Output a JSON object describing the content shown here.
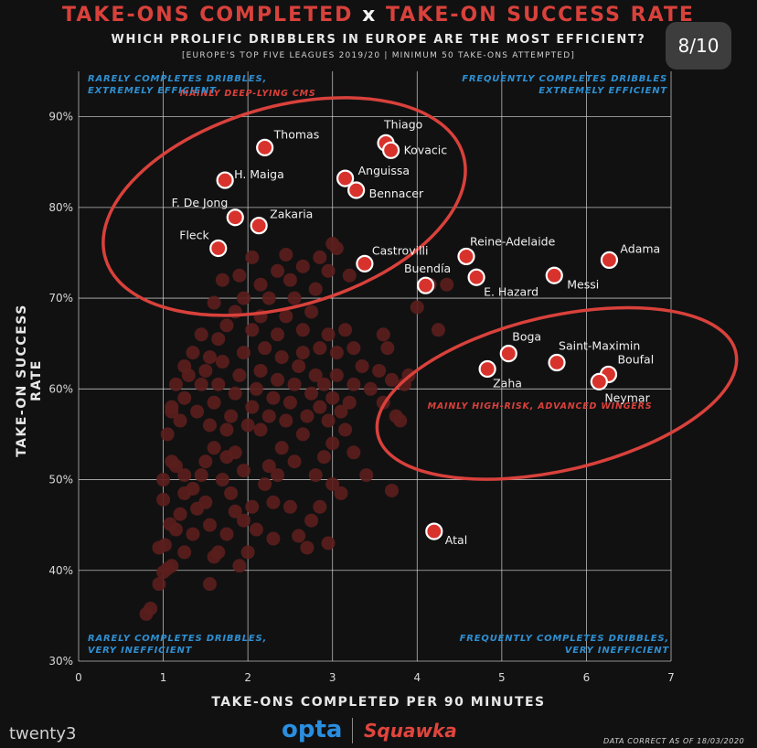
{
  "header": {
    "title_part1": "TAKE-ONS COMPLETED",
    "title_x": "x",
    "title_part2": "TAKE-ON SUCCESS RATE",
    "subtitle": "WHICH PROLIFIC DRIBBLERS IN EUROPE ARE THE MOST EFFICIENT?",
    "subsubtitle": "[EUROPE'S TOP FIVE LEAGUES 2019/20 | MINIMUM 50 TAKE-ONS ATTEMPTED]",
    "page_badge": "8/10"
  },
  "corners": {
    "top_left": "RARELY COMPLETES DRIBBLES,\nEXTREMELY EFFICIENT",
    "top_right": "FREQUENTLY COMPLETES DRIBBLES\nEXTREMELY EFFICIENT",
    "bottom_left": "RARELY COMPLETES DRIBBLES,\nVERY INEFFICIENT",
    "bottom_right": "FREQUENTLY COMPLETES DRIBBLES,\nVERY INEFFICIENT"
  },
  "footer": {
    "logo_left": "twenty3",
    "logo_opta": "opta",
    "logo_squawka": "Squawka",
    "footnote": "DATA CORRECT AS OF 18/03/2020"
  },
  "colors": {
    "background": "#111112",
    "accent_red": "#d9413b",
    "highlight_dot": "#d8322c",
    "background_dot": "#5a1e1c",
    "grid": "#d8d8d8",
    "corner_text": "#2f8fd0"
  },
  "chart_data": {
    "type": "scatter",
    "xlabel": "TAKE-ONS COMPLETED PER 90 MINUTES",
    "ylabel": "TAKE-ON SUCCESS RATE",
    "xlim": [
      0,
      7
    ],
    "ylim": [
      30,
      95
    ],
    "x_ticks": [
      "0",
      "1",
      "2",
      "3",
      "4",
      "5",
      "6",
      "7"
    ],
    "y_ticks": [
      "30%",
      "40%",
      "50%",
      "60%",
      "70%",
      "80%",
      "90%"
    ],
    "grid": true,
    "annotations": [
      {
        "text": "MAINLY DEEP-LYING CMS",
        "x": 2.0,
        "y": 92.3,
        "ellipse": {
          "cx": 2.43,
          "cy": 80.1,
          "rx": 2.2,
          "ry": 11.0,
          "angle": -16
        }
      },
      {
        "text": "MAINLY HIGH-RISK, ADVANCED WINGERS",
        "x": 5.45,
        "y": 57.8,
        "ellipse": {
          "cx": 5.65,
          "cy": 59.5,
          "rx": 2.17,
          "ry": 8.5,
          "angle": -13
        }
      }
    ],
    "highlighted_players": [
      {
        "name": "Thomas",
        "x": 2.2,
        "y": 86.6
      },
      {
        "name": "Thiago",
        "x": 3.63,
        "y": 87.1
      },
      {
        "name": "Kovacic",
        "x": 3.69,
        "y": 86.3
      },
      {
        "name": "H. Maiga",
        "x": 1.73,
        "y": 83.0
      },
      {
        "name": "Anguissa",
        "x": 3.15,
        "y": 83.2
      },
      {
        "name": "Bennacer",
        "x": 3.28,
        "y": 81.9
      },
      {
        "name": "F. De Jong",
        "x": 1.85,
        "y": 78.9
      },
      {
        "name": "Zakaria",
        "x": 2.13,
        "y": 78.0
      },
      {
        "name": "Fleck",
        "x": 1.65,
        "y": 75.5
      },
      {
        "name": "Castrovilli",
        "x": 3.38,
        "y": 73.8
      },
      {
        "name": "Reine-Adelaide",
        "x": 4.58,
        "y": 74.6
      },
      {
        "name": "Adama",
        "x": 6.27,
        "y": 74.2
      },
      {
        "name": "Buendía",
        "x": 4.1,
        "y": 71.4
      },
      {
        "name": "E. Hazard",
        "x": 4.7,
        "y": 72.3
      },
      {
        "name": "Messi",
        "x": 5.62,
        "y": 72.5
      },
      {
        "name": "Boga",
        "x": 5.08,
        "y": 63.9
      },
      {
        "name": "Saint-Maximin",
        "x": 5.65,
        "y": 62.9
      },
      {
        "name": "Zaha",
        "x": 4.83,
        "y": 62.2
      },
      {
        "name": "Boufal",
        "x": 6.26,
        "y": 61.6
      },
      {
        "name": "Neymar",
        "x": 6.15,
        "y": 60.8
      },
      {
        "name": "Atal",
        "x": 4.2,
        "y": 44.3
      }
    ],
    "other_players": [
      [
        0.8,
        35.2
      ],
      [
        0.85,
        35.8
      ],
      [
        0.95,
        38.5
      ],
      [
        1.0,
        39.8
      ],
      [
        1.05,
        40.2
      ],
      [
        1.1,
        40.5
      ],
      [
        0.95,
        42.5
      ],
      [
        1.02,
        42.8
      ],
      [
        1.08,
        45.1
      ],
      [
        1.15,
        44.5
      ],
      [
        1.0,
        47.8
      ],
      [
        1.2,
        46.2
      ],
      [
        1.25,
        48.5
      ],
      [
        1.35,
        44.0
      ],
      [
        1.4,
        46.8
      ],
      [
        1.5,
        47.5
      ],
      [
        1.55,
        45.0
      ],
      [
        1.6,
        41.5
      ],
      [
        1.65,
        42.0
      ],
      [
        1.55,
        38.5
      ],
      [
        1.0,
        50.0
      ],
      [
        1.1,
        52.0
      ],
      [
        1.15,
        51.5
      ],
      [
        1.25,
        50.5
      ],
      [
        1.35,
        49.0
      ],
      [
        1.45,
        50.5
      ],
      [
        1.5,
        52.0
      ],
      [
        1.6,
        53.5
      ],
      [
        1.7,
        50.0
      ],
      [
        1.8,
        48.5
      ],
      [
        1.85,
        46.5
      ],
      [
        1.95,
        45.5
      ],
      [
        2.05,
        47.0
      ],
      [
        2.1,
        44.5
      ],
      [
        2.0,
        42.0
      ],
      [
        2.2,
        49.5
      ],
      [
        2.3,
        47.5
      ],
      [
        2.35,
        50.5
      ],
      [
        2.5,
        47.0
      ],
      [
        2.6,
        43.8
      ],
      [
        2.7,
        42.5
      ],
      [
        2.75,
        45.5
      ],
      [
        2.85,
        47.0
      ],
      [
        3.0,
        49.5
      ],
      [
        2.95,
        43.0
      ],
      [
        2.55,
        52.0
      ],
      [
        2.65,
        55.0
      ],
      [
        2.4,
        53.5
      ],
      [
        2.25,
        51.5
      ],
      [
        2.15,
        55.5
      ],
      [
        1.05,
        55.0
      ],
      [
        1.1,
        57.5
      ],
      [
        1.2,
        56.5
      ],
      [
        1.25,
        59.0
      ],
      [
        1.3,
        61.5
      ],
      [
        1.4,
        57.5
      ],
      [
        1.45,
        60.5
      ],
      [
        1.5,
        62.0
      ],
      [
        1.55,
        56.0
      ],
      [
        1.6,
        58.5
      ],
      [
        1.65,
        60.5
      ],
      [
        1.7,
        63.0
      ],
      [
        1.75,
        55.5
      ],
      [
        1.8,
        57.0
      ],
      [
        1.85,
        59.5
      ],
      [
        1.9,
        61.5
      ],
      [
        1.95,
        64.0
      ],
      [
        2.0,
        56.0
      ],
      [
        2.05,
        58.0
      ],
      [
        2.1,
        60.0
      ],
      [
        2.15,
        62.0
      ],
      [
        2.2,
        64.5
      ],
      [
        2.25,
        57.0
      ],
      [
        2.3,
        59.0
      ],
      [
        2.35,
        61.0
      ],
      [
        2.4,
        63.5
      ],
      [
        2.45,
        56.5
      ],
      [
        2.5,
        58.5
      ],
      [
        2.55,
        60.5
      ],
      [
        2.6,
        62.5
      ],
      [
        2.65,
        64.0
      ],
      [
        2.7,
        57.0
      ],
      [
        2.75,
        59.5
      ],
      [
        2.8,
        61.5
      ],
      [
        2.85,
        58.0
      ],
      [
        2.9,
        60.5
      ],
      [
        2.95,
        56.5
      ],
      [
        3.0,
        59.0
      ],
      [
        3.05,
        61.5
      ],
      [
        3.1,
        57.5
      ],
      [
        3.15,
        55.5
      ],
      [
        3.2,
        58.5
      ],
      [
        3.25,
        53.0
      ],
      [
        3.0,
        54.0
      ],
      [
        2.9,
        52.5
      ],
      [
        1.85,
        53.0
      ],
      [
        1.95,
        51.0
      ],
      [
        1.75,
        52.5
      ],
      [
        2.8,
        50.5
      ],
      [
        3.1,
        48.5
      ],
      [
        1.55,
        63.5
      ],
      [
        1.65,
        65.5
      ],
      [
        1.75,
        67.0
      ],
      [
        1.85,
        68.5
      ],
      [
        1.95,
        70.0
      ],
      [
        2.05,
        66.5
      ],
      [
        2.15,
        68.0
      ],
      [
        2.25,
        70.0
      ],
      [
        2.35,
        66.0
      ],
      [
        2.45,
        68.0
      ],
      [
        2.55,
        70.0
      ],
      [
        2.65,
        66.5
      ],
      [
        2.75,
        68.5
      ],
      [
        2.85,
        64.5
      ],
      [
        2.95,
        66.0
      ],
      [
        3.05,
        64.0
      ],
      [
        3.15,
        66.5
      ],
      [
        3.25,
        64.5
      ],
      [
        3.35,
        62.5
      ],
      [
        3.25,
        60.5
      ],
      [
        1.7,
        72.0
      ],
      [
        1.9,
        72.5
      ],
      [
        2.05,
        74.5
      ],
      [
        2.15,
        71.5
      ],
      [
        2.35,
        73.0
      ],
      [
        2.5,
        72.0
      ],
      [
        2.65,
        73.5
      ],
      [
        2.8,
        71.0
      ],
      [
        2.95,
        73.0
      ],
      [
        3.05,
        75.5
      ],
      [
        3.2,
        72.5
      ],
      [
        3.0,
        76.0
      ],
      [
        2.85,
        74.5
      ],
      [
        2.45,
        74.8
      ],
      [
        1.6,
        69.5
      ],
      [
        1.45,
        66.0
      ],
      [
        1.35,
        64.0
      ],
      [
        1.25,
        62.5
      ],
      [
        1.15,
        60.5
      ],
      [
        1.1,
        58.0
      ],
      [
        3.45,
        60.0
      ],
      [
        3.55,
        62.0
      ],
      [
        3.65,
        64.5
      ],
      [
        3.7,
        61.0
      ],
      [
        3.75,
        57.0
      ],
      [
        3.8,
        56.5
      ],
      [
        3.85,
        60.5
      ],
      [
        3.6,
        66.0
      ],
      [
        3.7,
        48.8
      ],
      [
        3.4,
        50.5
      ],
      [
        4.0,
        69.0
      ],
      [
        4.15,
        71.5
      ],
      [
        4.25,
        66.5
      ],
      [
        4.35,
        71.5
      ],
      [
        3.9,
        61.5
      ],
      [
        3.6,
        58.5
      ],
      [
        1.9,
        40.5
      ],
      [
        2.3,
        43.5
      ],
      [
        1.75,
        44.0
      ],
      [
        1.25,
        42.0
      ]
    ]
  }
}
